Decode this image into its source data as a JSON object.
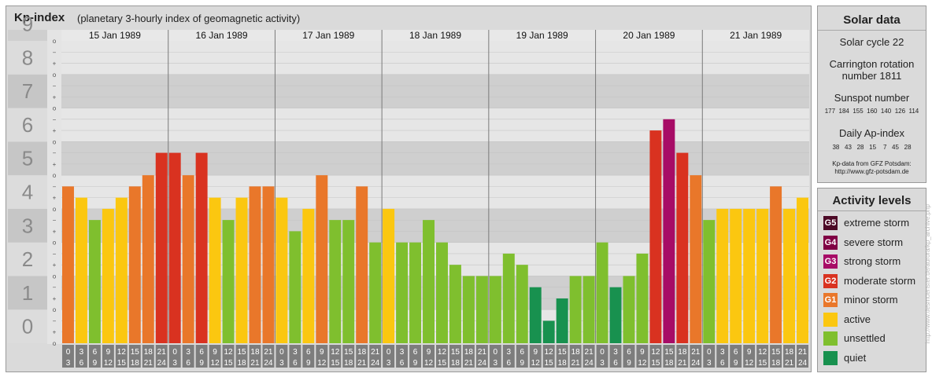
{
  "header": {
    "title": "Kp-index",
    "subtitle": "(planetary 3-hourly index of geomagnetic activity)"
  },
  "colors": {
    "quiet": "#18914f",
    "unsettled": "#7fbf2e",
    "active": "#fbc710",
    "G1": "#e9772a",
    "G2": "#d93220",
    "G3": "#a70c66",
    "G4": "#800044",
    "G5": "#4c0a26"
  },
  "solar_data": {
    "title": "Solar data",
    "solar_cycle": "Solar cycle 22",
    "carrington_line1": "Carrington rotation",
    "carrington_line2": "number 1811",
    "sunspot_title": "Sunspot number",
    "sunspot_values": "177  184  155  160  140  126  114",
    "ap_title": "Daily Ap-index",
    "ap_values": "38   43   28   15    7   45   28",
    "source_line1": "Kp-data from GFZ Potsdam:",
    "source_line2": "http://www.gfz-potsdam.de"
  },
  "activity_levels": {
    "title": "Activity levels",
    "items": [
      {
        "code": "G5",
        "label": "extreme storm",
        "color_key": "G5"
      },
      {
        "code": "G4",
        "label": "severe storm",
        "color_key": "G4"
      },
      {
        "code": "G3",
        "label": "strong storm",
        "color_key": "G3"
      },
      {
        "code": "G2",
        "label": "moderate storm",
        "color_key": "G2"
      },
      {
        "code": "G1",
        "label": "minor storm",
        "color_key": "G1"
      },
      {
        "code": "",
        "label": "active",
        "color_key": "active"
      },
      {
        "code": "",
        "label": "unsettled",
        "color_key": "unsettled"
      },
      {
        "code": "",
        "label": "quiet",
        "color_key": "quiet"
      }
    ]
  },
  "credit": "http://www.tiesmuenster.de/aurora/kp_archive.php",
  "chart_data": {
    "type": "bar",
    "title": "Kp-index",
    "ylim": [
      0,
      9
    ],
    "y_ticks": [
      "0",
      "1",
      "2",
      "3",
      "4",
      "5",
      "6",
      "7",
      "8",
      "9"
    ],
    "sub_ticks": [
      "o",
      "+",
      "−"
    ],
    "days": [
      "15 Jan 1989",
      "16 Jan 1989",
      "17 Jan 1989",
      "18 Jan 1989",
      "19 Jan 1989",
      "20 Jan 1989",
      "21 Jan 1989"
    ],
    "interval_top": [
      "0",
      "3",
      "6",
      "9",
      "12",
      "15",
      "18",
      "21"
    ],
    "interval_bottom": [
      "3",
      "6",
      "9",
      "12",
      "15",
      "18",
      "21",
      "24"
    ],
    "values": [
      4.667,
      4.333,
      3.667,
      4.0,
      4.333,
      4.667,
      5.0,
      5.667,
      5.667,
      5.0,
      5.667,
      4.333,
      3.667,
      4.333,
      4.667,
      4.667,
      4.333,
      3.333,
      4.0,
      5.0,
      3.667,
      3.667,
      4.667,
      3.0,
      4.0,
      3.0,
      3.0,
      3.667,
      3.0,
      2.333,
      2.0,
      2.0,
      2.0,
      2.667,
      2.333,
      1.667,
      0.667,
      1.333,
      2.0,
      2.0,
      3.0,
      1.667,
      2.0,
      2.667,
      6.333,
      6.667,
      5.667,
      5.0,
      3.667,
      4.0,
      4.0,
      4.0,
      4.0,
      4.667,
      4.0,
      4.333
    ]
  }
}
